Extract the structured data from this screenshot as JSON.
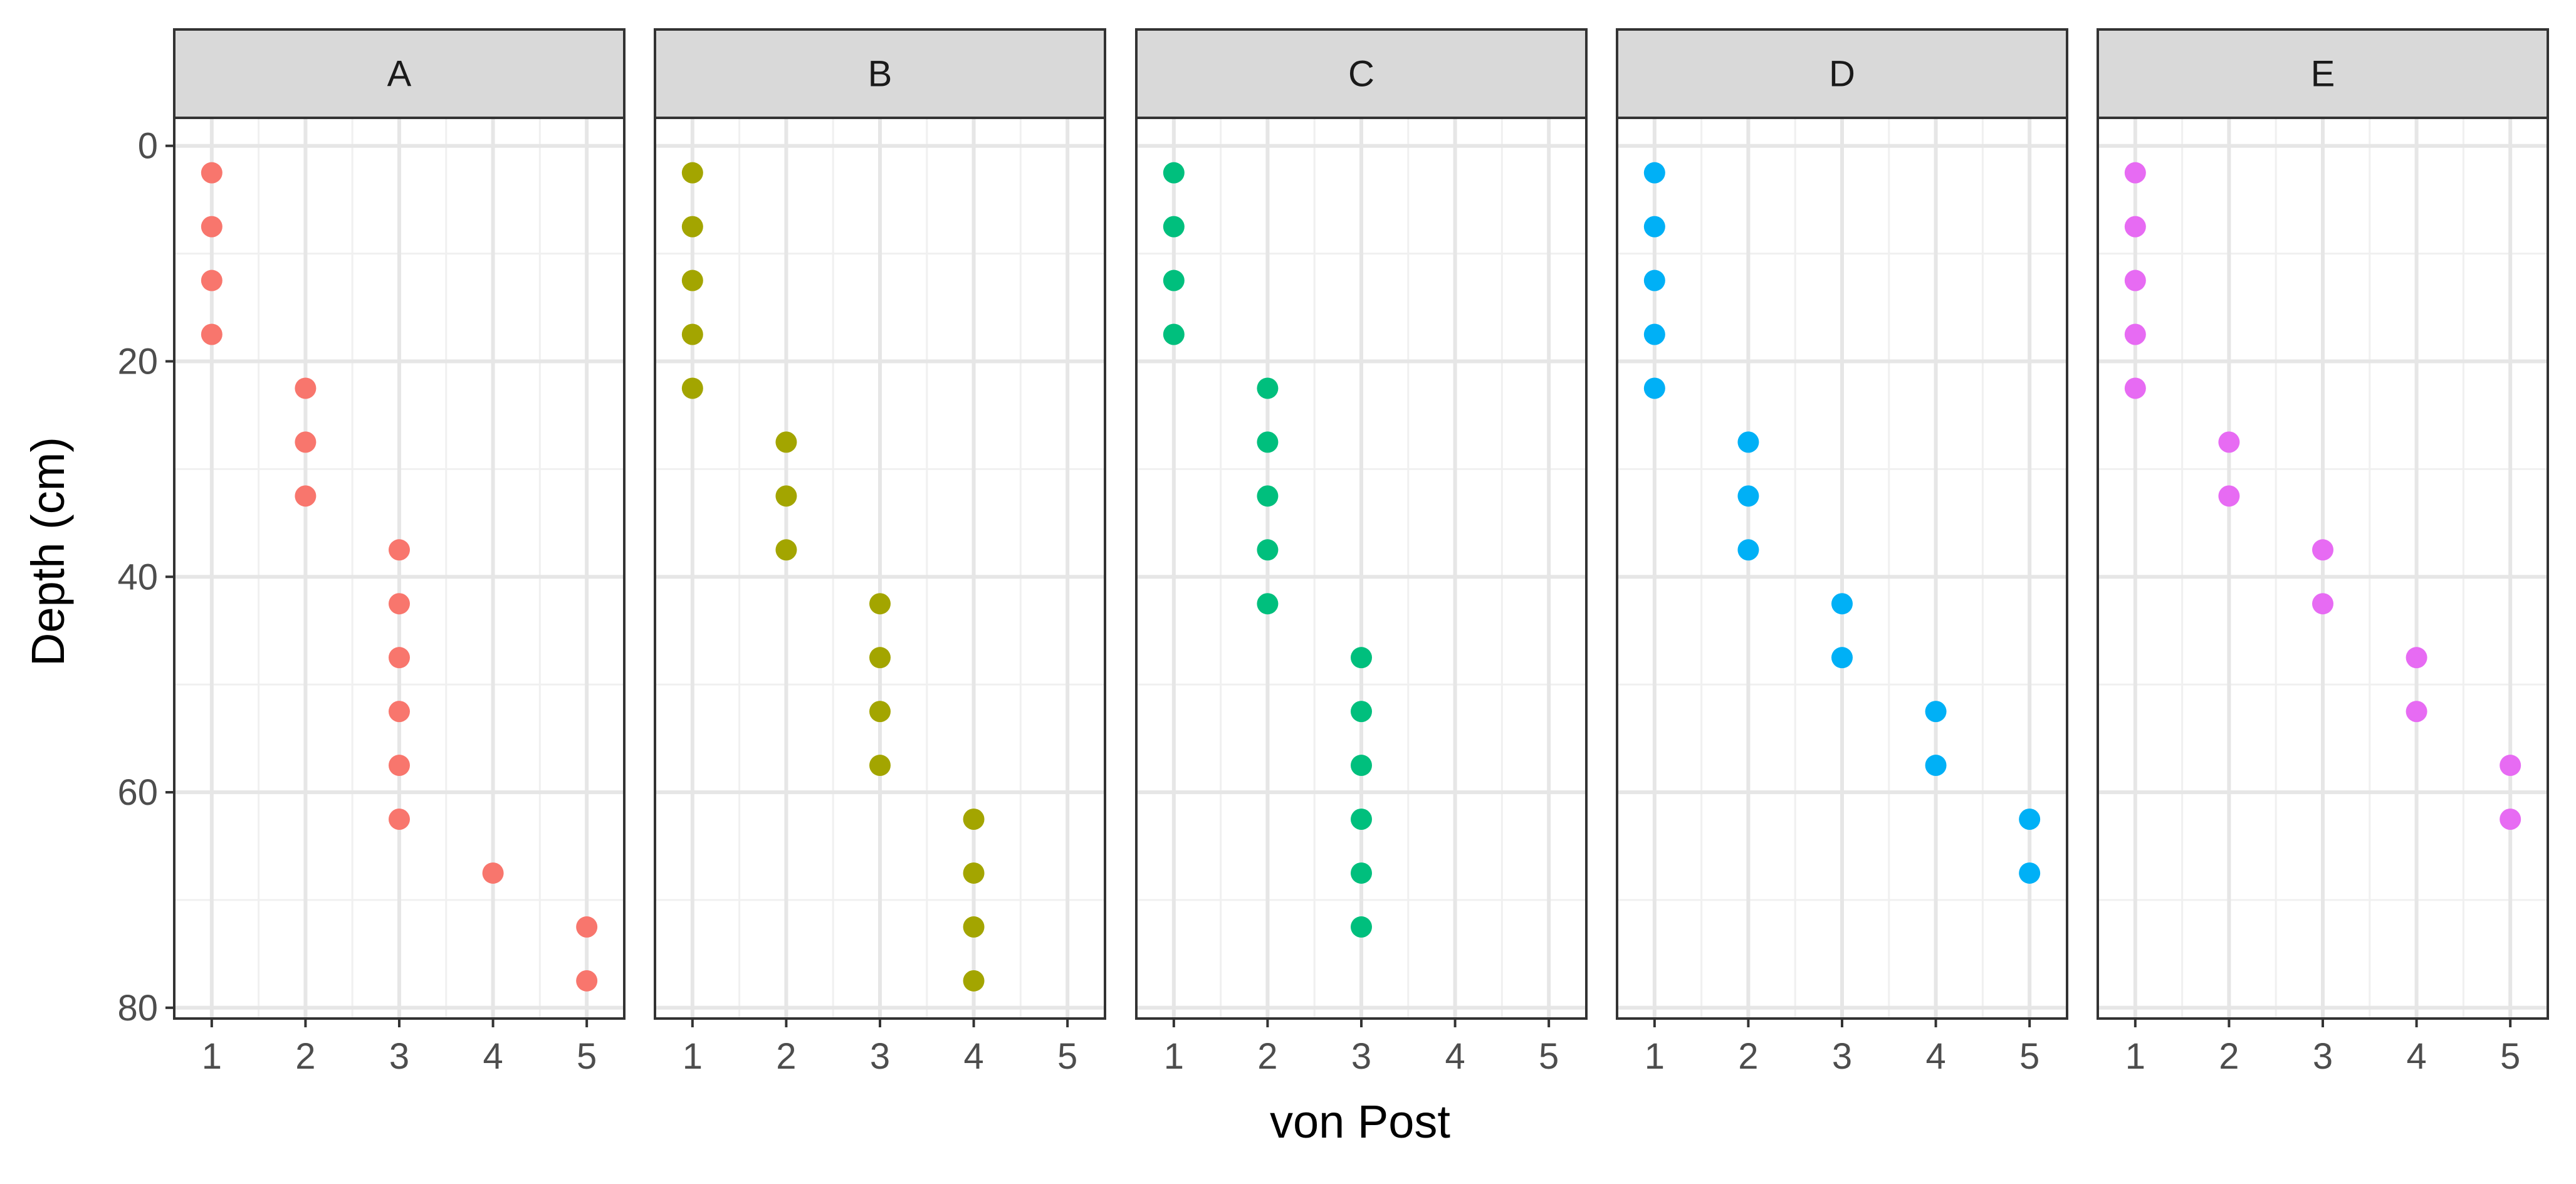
{
  "chart_data": {
    "type": "scatter",
    "facet_by": "panel",
    "xlabel": "von Post",
    "ylabel": "Depth (cm)",
    "xlim": [
      0.6,
      5.4
    ],
    "ylim": [
      81,
      -2.6
    ],
    "y_reversed": true,
    "x_ticks": [
      1,
      2,
      3,
      4,
      5
    ],
    "y_ticks": [
      0,
      20,
      40,
      60,
      80
    ],
    "grid": true,
    "legend": "none",
    "panels": [
      {
        "label": "A",
        "color": "#F8766D",
        "points": [
          {
            "x": 1,
            "y": 2.5
          },
          {
            "x": 1,
            "y": 7.5
          },
          {
            "x": 1,
            "y": 12.5
          },
          {
            "x": 1,
            "y": 17.5
          },
          {
            "x": 2,
            "y": 22.5
          },
          {
            "x": 2,
            "y": 27.5
          },
          {
            "x": 2,
            "y": 32.5
          },
          {
            "x": 3,
            "y": 37.5
          },
          {
            "x": 3,
            "y": 42.5
          },
          {
            "x": 3,
            "y": 47.5
          },
          {
            "x": 3,
            "y": 52.5
          },
          {
            "x": 3,
            "y": 57.5
          },
          {
            "x": 3,
            "y": 62.5
          },
          {
            "x": 4,
            "y": 67.5
          },
          {
            "x": 5,
            "y": 72.5
          },
          {
            "x": 5,
            "y": 77.5
          }
        ]
      },
      {
        "label": "B",
        "color": "#A3A500",
        "points": [
          {
            "x": 1,
            "y": 2.5
          },
          {
            "x": 1,
            "y": 7.5
          },
          {
            "x": 1,
            "y": 12.5
          },
          {
            "x": 1,
            "y": 17.5
          },
          {
            "x": 1,
            "y": 22.5
          },
          {
            "x": 2,
            "y": 27.5
          },
          {
            "x": 2,
            "y": 32.5
          },
          {
            "x": 2,
            "y": 37.5
          },
          {
            "x": 3,
            "y": 42.5
          },
          {
            "x": 3,
            "y": 47.5
          },
          {
            "x": 3,
            "y": 52.5
          },
          {
            "x": 3,
            "y": 57.5
          },
          {
            "x": 4,
            "y": 62.5
          },
          {
            "x": 4,
            "y": 67.5
          },
          {
            "x": 4,
            "y": 72.5
          },
          {
            "x": 4,
            "y": 77.5
          }
        ]
      },
      {
        "label": "C",
        "color": "#00BF7D",
        "points": [
          {
            "x": 1,
            "y": 2.5
          },
          {
            "x": 1,
            "y": 7.5
          },
          {
            "x": 1,
            "y": 12.5
          },
          {
            "x": 1,
            "y": 17.5
          },
          {
            "x": 2,
            "y": 22.5
          },
          {
            "x": 2,
            "y": 27.5
          },
          {
            "x": 2,
            "y": 32.5
          },
          {
            "x": 2,
            "y": 37.5
          },
          {
            "x": 2,
            "y": 42.5
          },
          {
            "x": 3,
            "y": 47.5
          },
          {
            "x": 3,
            "y": 52.5
          },
          {
            "x": 3,
            "y": 57.5
          },
          {
            "x": 3,
            "y": 62.5
          },
          {
            "x": 3,
            "y": 67.5
          },
          {
            "x": 3,
            "y": 72.5
          }
        ]
      },
      {
        "label": "D",
        "color": "#00B0F6",
        "points": [
          {
            "x": 1,
            "y": 2.5
          },
          {
            "x": 1,
            "y": 7.5
          },
          {
            "x": 1,
            "y": 12.5
          },
          {
            "x": 1,
            "y": 17.5
          },
          {
            "x": 1,
            "y": 22.5
          },
          {
            "x": 2,
            "y": 27.5
          },
          {
            "x": 2,
            "y": 32.5
          },
          {
            "x": 2,
            "y": 37.5
          },
          {
            "x": 3,
            "y": 42.5
          },
          {
            "x": 3,
            "y": 47.5
          },
          {
            "x": 4,
            "y": 52.5
          },
          {
            "x": 4,
            "y": 57.5
          },
          {
            "x": 5,
            "y": 62.5
          },
          {
            "x": 5,
            "y": 67.5
          }
        ]
      },
      {
        "label": "E",
        "color": "#E76BF3",
        "points": [
          {
            "x": 1,
            "y": 2.5
          },
          {
            "x": 1,
            "y": 7.5
          },
          {
            "x": 1,
            "y": 12.5
          },
          {
            "x": 1,
            "y": 17.5
          },
          {
            "x": 1,
            "y": 22.5
          },
          {
            "x": 2,
            "y": 27.5
          },
          {
            "x": 2,
            "y": 32.5
          },
          {
            "x": 3,
            "y": 37.5
          },
          {
            "x": 3,
            "y": 42.5
          },
          {
            "x": 4,
            "y": 47.5
          },
          {
            "x": 4,
            "y": 52.5
          },
          {
            "x": 5,
            "y": 57.5
          },
          {
            "x": 5,
            "y": 62.5
          }
        ]
      }
    ]
  }
}
